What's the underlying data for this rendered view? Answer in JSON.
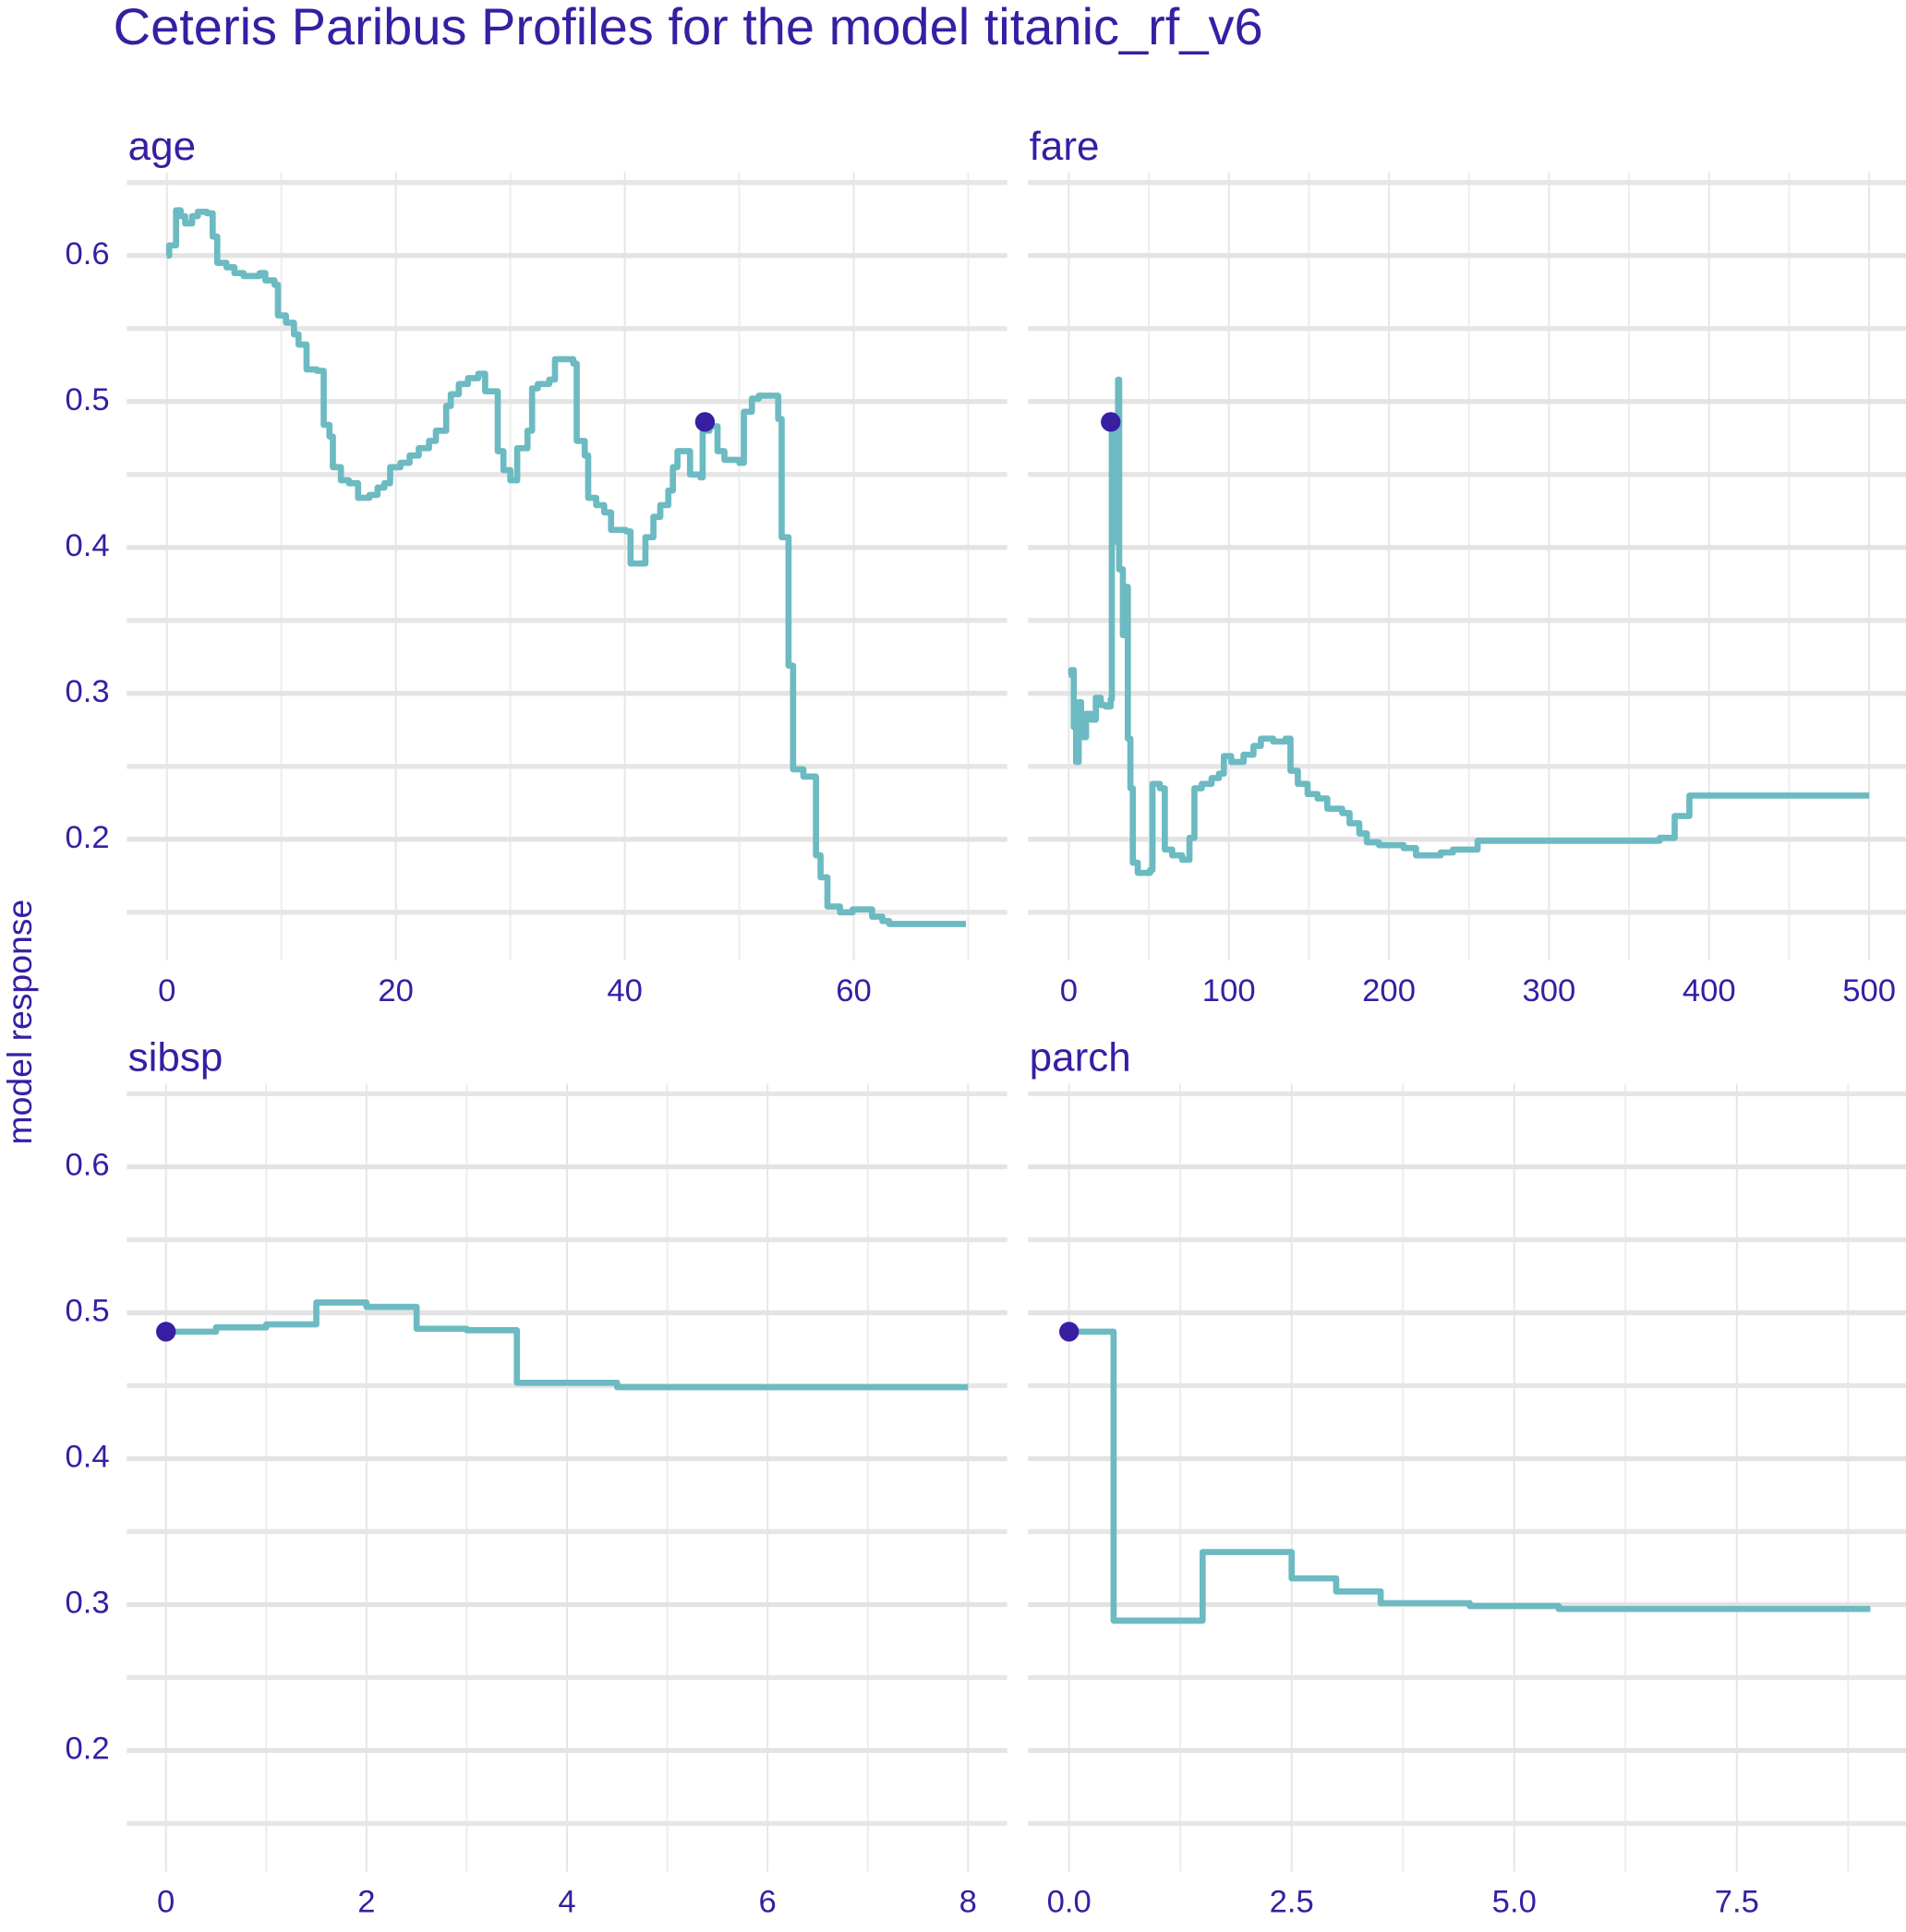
{
  "title": "Ceteris Paribus Profiles for the model titanic_rf_v6",
  "y_label": "model response",
  "chart_data": [
    {
      "type": "line",
      "title": "age",
      "drawstyle": "steps-post",
      "color": "#6cbac2",
      "grid": true,
      "x": [
        0,
        0.2,
        0.8,
        1.2,
        1.6,
        2.2,
        2.7,
        3.5,
        4.0,
        4.4,
        5.2,
        5.9,
        6.7,
        8.1,
        8.6,
        9.4,
        9.7,
        10.4,
        11.1,
        11.5,
        12.2,
        13.1,
        13.7,
        14.2,
        14.5,
        15.2,
        15.9,
        16.7,
        17.7,
        18.4,
        19.0,
        19.5,
        20.4,
        21.2,
        22.0,
        22.9,
        23.5,
        24.4,
        24.8,
        25.5,
        26.3,
        27.2,
        27.8,
        28.7,
        28.9,
        29.4,
        30.0,
        30.6,
        31.5,
        31.9,
        32.4,
        33.4,
        33.9,
        34.7,
        35.5,
        35.8,
        36.5,
        36.8,
        37.5,
        38.2,
        38.8,
        40.1,
        40.5,
        41.6,
        41.8,
        42.5,
        43.1,
        43.8,
        44.2,
        44.6,
        45.5,
        45.7,
        46.6,
        46.8,
        47.4,
        48.1,
        48.7,
        50.0,
        50.4,
        51.1,
        51.7,
        52.8,
        53.4,
        53.7,
        54.3,
        54.7,
        55.6,
        56.5,
        56.7,
        57.1,
        57.7,
        58.8,
        59.9,
        60.8,
        61.6,
        62.5,
        63.1,
        69.8
      ],
      "values": [
        0.6,
        0.607,
        0.631,
        0.627,
        0.622,
        0.627,
        0.63,
        0.629,
        0.613,
        0.595,
        0.592,
        0.588,
        0.586,
        0.588,
        0.583,
        0.58,
        0.559,
        0.554,
        0.546,
        0.539,
        0.522,
        0.521,
        0.484,
        0.476,
        0.455,
        0.446,
        0.444,
        0.434,
        0.436,
        0.441,
        0.444,
        0.455,
        0.458,
        0.463,
        0.468,
        0.473,
        0.48,
        0.497,
        0.505,
        0.512,
        0.516,
        0.519,
        0.507,
        0.507,
        0.466,
        0.453,
        0.446,
        0.468,
        0.48,
        0.509,
        0.512,
        0.515,
        0.529,
        0.529,
        0.526,
        0.473,
        0.463,
        0.434,
        0.429,
        0.424,
        0.412,
        0.411,
        0.389,
        0.389,
        0.407,
        0.421,
        0.429,
        0.439,
        0.455,
        0.466,
        0.466,
        0.45,
        0.448,
        0.48,
        0.483,
        0.466,
        0.46,
        0.458,
        0.493,
        0.502,
        0.504,
        0.504,
        0.488,
        0.407,
        0.319,
        0.248,
        0.243,
        0.243,
        0.189,
        0.174,
        0.154,
        0.15,
        0.152,
        0.152,
        0.147,
        0.144,
        0.142,
        0.142
      ],
      "observation": {
        "x": 47.0,
        "y": 0.486,
        "color": "#371ea3"
      },
      "xlim": [
        -3.5,
        73.4
      ],
      "xticks": [
        0,
        20,
        40,
        60
      ],
      "xticks_minor": [
        10,
        30,
        50,
        70
      ],
      "ylim": [
        0.117,
        0.657
      ],
      "yticks": [
        0.2,
        0.3,
        0.4,
        0.5,
        0.6
      ],
      "yticks_minor": [
        0.15,
        0.25,
        0.35,
        0.45,
        0.55,
        0.65
      ]
    },
    {
      "type": "line",
      "title": "fare",
      "drawstyle": "steps-post",
      "color": "#6cbac2",
      "grid": true,
      "x": [
        0.0,
        1.5,
        3.1,
        4.6,
        6.2,
        7.7,
        10.8,
        13.8,
        16.9,
        20.0,
        23.1,
        26.2,
        26.9,
        27.7,
        29.2,
        30.8,
        31.5,
        33.8,
        35.4,
        36.9,
        38.5,
        40.0,
        43.1,
        50.8,
        52.3,
        56.9,
        60.0,
        64.6,
        70.8,
        75.4,
        78.5,
        83.1,
        89.2,
        93.8,
        96.9,
        101.5,
        109.2,
        115.4,
        120.0,
        127.7,
        135.4,
        138.5,
        143.1,
        149.2,
        155.4,
        161.5,
        170.8,
        175.4,
        181.5,
        186.2,
        193.8,
        209.2,
        216.9,
        232.3,
        240.0,
        255.4,
        369.2,
        378.5,
        387.7,
        500.0
      ],
      "values": [
        0.313,
        0.316,
        0.277,
        0.253,
        0.294,
        0.27,
        0.286,
        0.282,
        0.297,
        0.292,
        0.291,
        0.296,
        0.488,
        0.404,
        0.48,
        0.515,
        0.385,
        0.34,
        0.373,
        0.269,
        0.235,
        0.184,
        0.177,
        0.179,
        0.238,
        0.235,
        0.193,
        0.189,
        0.186,
        0.201,
        0.235,
        0.238,
        0.242,
        0.245,
        0.257,
        0.253,
        0.258,
        0.264,
        0.269,
        0.267,
        0.269,
        0.247,
        0.238,
        0.231,
        0.228,
        0.221,
        0.218,
        0.211,
        0.204,
        0.198,
        0.196,
        0.194,
        0.189,
        0.191,
        0.193,
        0.199,
        0.201,
        0.216,
        0.23,
        0.23
      ],
      "observation": {
        "x": 26.2,
        "y": 0.486,
        "color": "#371ea3"
      },
      "xlim": [
        -25.4,
        523
      ],
      "xticks": [
        0,
        100,
        200,
        300,
        400,
        500
      ],
      "xticks_minor": [
        50,
        150,
        250,
        350,
        450
      ],
      "ylim": [
        0.117,
        0.657
      ],
      "yticks": [
        0.2,
        0.3,
        0.4,
        0.5,
        0.6
      ],
      "yticks_minor": [
        0.15,
        0.25,
        0.35,
        0.45,
        0.55,
        0.65
      ]
    },
    {
      "type": "line",
      "title": "sibsp",
      "drawstyle": "steps-post",
      "color": "#6cbac2",
      "grid": true,
      "x": [
        0,
        0.5,
        1.0,
        1.5,
        2.0,
        2.5,
        3.0,
        3.5,
        4.5,
        8.0
      ],
      "values": [
        0.487,
        0.49,
        0.492,
        0.507,
        0.504,
        0.489,
        0.488,
        0.452,
        0.449,
        0.449
      ],
      "observation": {
        "x": 0,
        "y": 0.487,
        "color": "#371ea3"
      },
      "xlim": [
        -0.39,
        8.39
      ],
      "xticks": [
        0,
        2,
        4,
        6,
        8
      ],
      "xticks_minor": [
        1,
        3,
        5,
        7
      ],
      "ylim": [
        0.117,
        0.657
      ],
      "yticks": [
        0.2,
        0.3,
        0.4,
        0.5,
        0.6
      ],
      "yticks_minor": [
        0.15,
        0.25,
        0.35,
        0.45,
        0.55,
        0.65
      ]
    },
    {
      "type": "line",
      "title": "parch",
      "drawstyle": "steps-post",
      "color": "#6cbac2",
      "grid": true,
      "x": [
        0,
        0.5,
        1.5,
        2.5,
        3.0,
        3.5,
        4.5,
        5.5,
        9.0
      ],
      "values": [
        0.487,
        0.289,
        0.336,
        0.318,
        0.309,
        0.301,
        0.299,
        0.297,
        0.297
      ],
      "observation": {
        "x": 0,
        "y": 0.487,
        "color": "#371ea3"
      },
      "xlim": [
        -0.46,
        9.4
      ],
      "xticks": [
        {
          "value": 0,
          "label": "0.0"
        },
        2.5,
        {
          "value": 5,
          "label": "5.0"
        },
        7.5
      ],
      "xticks_minor": [
        1.25,
        3.75,
        6.25,
        8.75
      ],
      "ylim": [
        0.117,
        0.657
      ],
      "yticks": [
        0.2,
        0.3,
        0.4,
        0.5,
        0.6
      ],
      "yticks_minor": [
        0.15,
        0.25,
        0.35,
        0.45,
        0.55,
        0.65
      ]
    }
  ]
}
